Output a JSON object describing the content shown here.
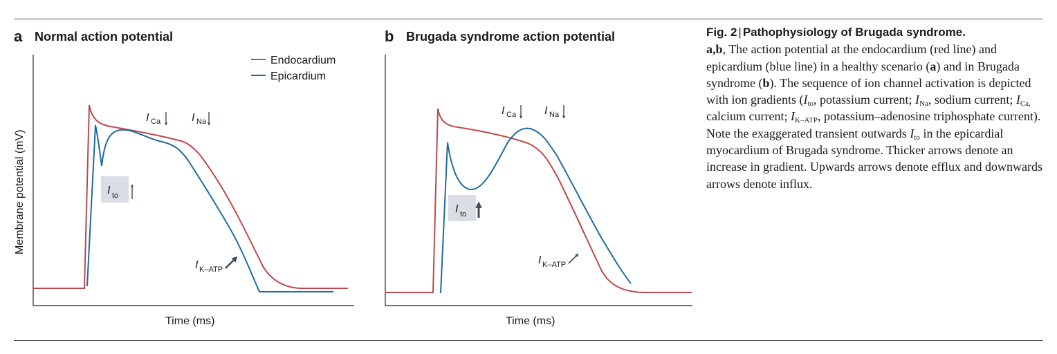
{
  "panel_a": {
    "letter": "a",
    "title": "Normal action potential",
    "xlabel": "Time (ms)",
    "ylabel": "Membrane potential (mV)",
    "legend": [
      {
        "label": "Endocardium",
        "color": "#c0484a"
      },
      {
        "label": "Epicardium",
        "color": "#1f6aa5"
      }
    ],
    "annotations": {
      "ica": {
        "main": "I",
        "sub": "Ca"
      },
      "ina": {
        "main": "I",
        "sub": "Na"
      },
      "ito": {
        "main": "I",
        "sub": "to"
      },
      "ikatp": {
        "main": "I",
        "sub": "K–ATP"
      }
    }
  },
  "panel_b": {
    "letter": "b",
    "title": "Brugada syndrome action potential",
    "xlabel": "Time (ms)",
    "annotations": {
      "ica": {
        "main": "I",
        "sub": "Ca"
      },
      "ina": {
        "main": "I",
        "sub": "Na"
      },
      "ito": {
        "main": "I",
        "sub": "to"
      },
      "ikatp": {
        "main": "I",
        "sub": "K–ATP"
      }
    }
  },
  "colors": {
    "endocardium": "#c0484a",
    "epicardium": "#1f6aa5",
    "arrow": "#3d4a5c",
    "ito_box": "#d9dde4",
    "axis": "#222222"
  },
  "caption": {
    "fig_label": "Fig. 2",
    "separator": "|",
    "title": "Pathophysiology of Brugada syndrome.",
    "panels_ref": "a,b",
    "text_1": ", The action potential at the endocardium (red line) and epicardium (blue line) in a healthy scenario (",
    "ref_a": "a",
    "text_2": ") and in Brugada syndrome (",
    "ref_b": "b",
    "text_3": "). The sequence of ion channel activation is depicted with ion gradients (",
    "ito_main": "I",
    "ito_sub": "to",
    "ito_desc": ", potassium current; ",
    "ina_main": "I",
    "ina_sub": "Na",
    "ina_desc": ", sodium current; ",
    "ica_main": "I",
    "ica_sub": "Ca,",
    "ica_desc": " calcium current; ",
    "ikatp_main": "I",
    "ikatp_sub": "K–ATP",
    "ikatp_desc": ", potassium–adenosine triphosphate current). Note the exaggerated transient outwards ",
    "ito2_main": "I",
    "ito2_sub": "to",
    "text_4": " in the epicardial myocardium of Brugada syndrome. Thicker arrows denote an increase in gradient. Upwards arrows denote efflux and downwards arrows denote influx."
  }
}
